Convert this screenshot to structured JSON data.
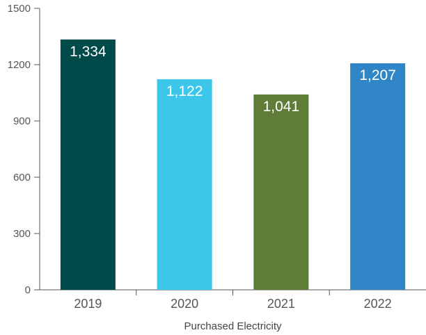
{
  "chart_data": {
    "type": "bar",
    "categories": [
      "2019",
      "2020",
      "2021",
      "2022"
    ],
    "values": [
      1334,
      1122,
      1041,
      1207
    ],
    "value_labels": [
      "1,334",
      "1,122",
      "1,041",
      "1,207"
    ],
    "colors": [
      "#004b4a",
      "#3cc6ea",
      "#5f7c39",
      "#3085c7"
    ],
    "xlabel": "Purchased Electricity",
    "ylabel": "",
    "ylim": [
      0,
      1500
    ],
    "yticks": [
      0,
      300,
      600,
      900,
      1200,
      1500
    ],
    "ytick_labels": [
      "0",
      "300",
      "600",
      "900",
      "1200",
      "1500"
    ],
    "grid": false,
    "legend": "none"
  }
}
